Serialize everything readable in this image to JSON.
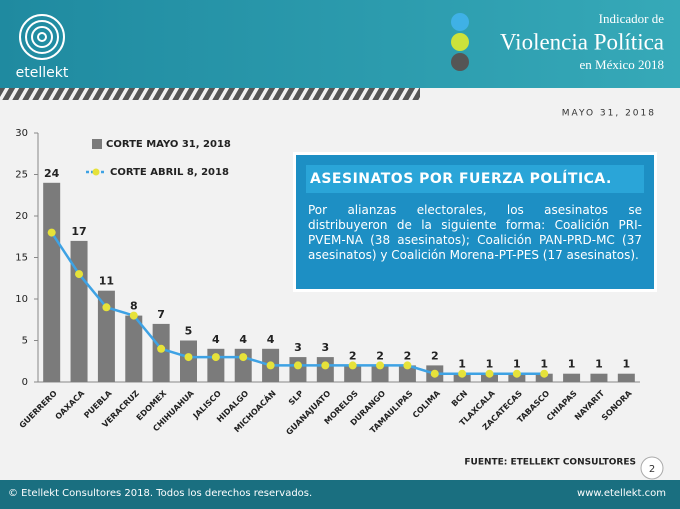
{
  "header": {
    "brand": "etellekt",
    "title_pre": "Indicador de",
    "title": "Violencia Política",
    "title_post": "en México 2018"
  },
  "chart_data": {
    "type": "bar",
    "subtitle": "MAYO 31, 2018",
    "categories": [
      "GUERRERO",
      "OAXACA",
      "PUEBLA",
      "VERACRUZ",
      "EDOMEX",
      "CHIHUAHUA",
      "JALISCO",
      "HIDALGO",
      "MICHOACÁN",
      "SLP",
      "GUANAJUATO",
      "MORELOS",
      "DURANGO",
      "TAMAULIPAS",
      "COLIMA",
      "BCN",
      "TLAXCALA",
      "ZACATECAS",
      "TABASCO",
      "CHIAPAS",
      "NAYARIT",
      "SONORA"
    ],
    "series": [
      {
        "name": "CORTE MAYO 31, 2018",
        "type": "bar",
        "color": "#7b7b7b",
        "values": [
          24,
          17,
          11,
          8,
          7,
          5,
          4,
          4,
          4,
          3,
          3,
          2,
          2,
          2,
          2,
          1,
          1,
          1,
          1,
          1,
          1,
          1
        ]
      },
      {
        "name": "CORTE ABRIL 8, 2018",
        "type": "line",
        "color": "#3ea2e4",
        "marker_color": "#e6e23a",
        "values": [
          18,
          13,
          9,
          8,
          4,
          3,
          3,
          3,
          2,
          2,
          2,
          2,
          2,
          2,
          1,
          1,
          1,
          1,
          1,
          null,
          null,
          null
        ]
      }
    ],
    "ylim": [
      0,
      30
    ],
    "yticks": [
      0,
      5,
      10,
      15,
      20,
      25,
      30
    ],
    "annotation": {
      "title": "ASESINATOS POR FUERZA POLÍTICA.",
      "text": "Por alianzas electorales, los asesinatos se distribuyeron de la siguiente forma: Coalición PRI-PVEM-NA (38 asesinatos); Coalición PAN-PRD-MC (37 asesinatos) y Coalición Morena-PT-PES (17 asesinatos)."
    },
    "source": "FUENTE: ETELLEKT CONSULTORES"
  },
  "page_number": "2",
  "footer": {
    "copyright": "© Etellekt Consultores 2018. Todos los derechos reservados.",
    "url": "www.etellekt.com"
  }
}
